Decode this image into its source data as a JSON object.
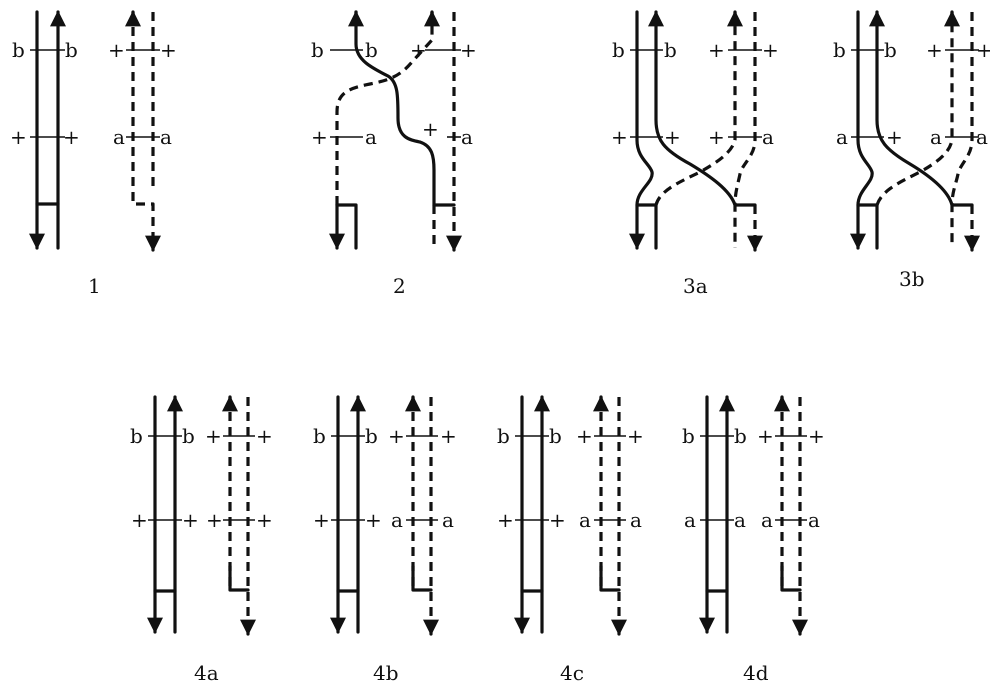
{
  "panels": [
    {
      "id": "1",
      "caption": "1",
      "left": {
        "top": [
          "b",
          "b"
        ],
        "mid": [
          "+",
          "+"
        ]
      },
      "right": {
        "top": [
          "+",
          "+"
        ],
        "mid": [
          "a",
          "a"
        ]
      }
    },
    {
      "id": "2",
      "caption": "2",
      "left": {
        "top": [
          "b",
          "b"
        ],
        "mid": [
          "+",
          "a"
        ]
      },
      "right": {
        "top": [
          "+",
          "+"
        ],
        "mid": [
          "+",
          "a"
        ]
      }
    },
    {
      "id": "3a",
      "caption": "3a",
      "left": {
        "top": [
          "b",
          "b"
        ],
        "mid": [
          "+",
          "+"
        ]
      },
      "right": {
        "top": [
          "+",
          "+"
        ],
        "mid": [
          "+",
          "a"
        ]
      }
    },
    {
      "id": "3b",
      "caption": "3b",
      "left": {
        "top": [
          "b",
          "b"
        ],
        "mid": [
          "a",
          "+"
        ]
      },
      "right": {
        "top": [
          "+",
          "+"
        ],
        "mid": [
          "a",
          "a"
        ]
      }
    },
    {
      "id": "4a",
      "caption": "4a",
      "left": {
        "top": [
          "b",
          "b"
        ],
        "mid": [
          "+",
          "+"
        ]
      },
      "right": {
        "top": [
          "+",
          "+"
        ],
        "mid": [
          "+",
          "+"
        ]
      }
    },
    {
      "id": "4b",
      "caption": "4b",
      "left": {
        "top": [
          "b",
          "b"
        ],
        "mid": [
          "+",
          "+"
        ]
      },
      "right": {
        "top": [
          "+",
          "+"
        ],
        "mid": [
          "a",
          "a"
        ]
      }
    },
    {
      "id": "4c",
      "caption": "4c",
      "left": {
        "top": [
          "b",
          "b"
        ],
        "mid": [
          "+",
          "+"
        ]
      },
      "right": {
        "top": [
          "+",
          "+"
        ],
        "mid": [
          "a",
          "a"
        ]
      }
    },
    {
      "id": "4d",
      "caption": "4d",
      "left": {
        "top": [
          "b",
          "b"
        ],
        "mid": [
          "a",
          "a"
        ]
      },
      "right": {
        "top": [
          "+",
          "+"
        ],
        "mid": [
          "a",
          "a"
        ]
      }
    }
  ]
}
